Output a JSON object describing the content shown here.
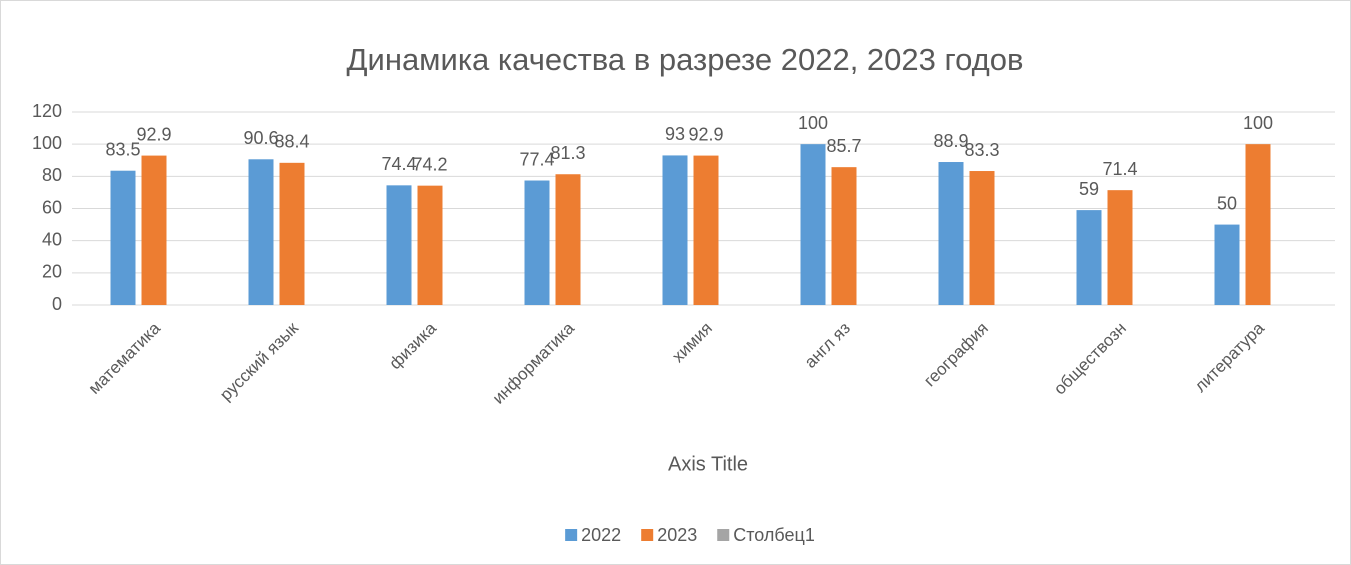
{
  "chart_data": {
    "type": "bar",
    "title": "Динамика качества в разрезе 2022, 2023 годов",
    "x_label": "Axis Title",
    "categories": [
      "математика",
      "русский язык",
      "физика",
      "информатика",
      "химия",
      "англ яз",
      "география",
      "обществозн",
      "литература"
    ],
    "series": [
      {
        "name": "2022",
        "color": "#5b9bd5",
        "values": [
          83.5,
          90.6,
          74.4,
          77.4,
          93,
          100,
          88.9,
          59,
          50
        ]
      },
      {
        "name": "2023",
        "color": "#ed7d31",
        "values": [
          92.9,
          88.4,
          74.2,
          81.3,
          92.9,
          85.7,
          83.3,
          71.4,
          100
        ]
      },
      {
        "name": "Столбец1",
        "color": "#a5a5a5",
        "values": [
          null,
          null,
          null,
          null,
          null,
          null,
          null,
          null,
          null
        ]
      }
    ],
    "ylim": [
      0,
      120
    ],
    "yticks": [
      0,
      20,
      40,
      60,
      80,
      100,
      120
    ],
    "grid": true,
    "legend": "bottom"
  }
}
